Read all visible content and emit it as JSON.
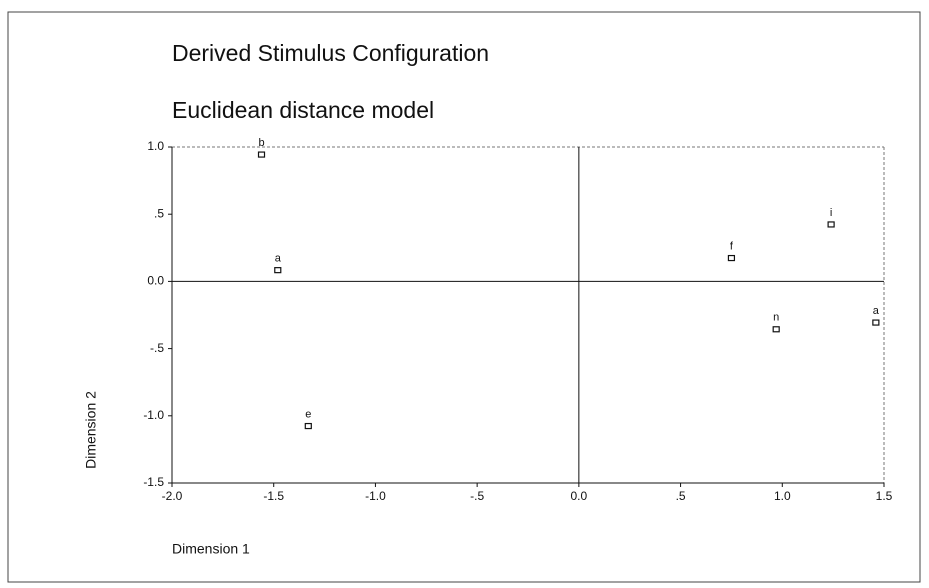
{
  "chart_data": {
    "type": "scatter",
    "title": "Derived Stimulus Configuration",
    "subtitle": "Euclidean distance model",
    "xlabel": "Dimension 1",
    "ylabel": "Dimension 2",
    "point_labels": [
      "b",
      "a",
      "e",
      "f",
      "i",
      "n",
      "a"
    ],
    "x": [
      -1.56,
      -1.48,
      -1.33,
      0.75,
      1.24,
      0.97,
      1.46
    ],
    "values": [
      0.94,
      0.08,
      -1.08,
      0.17,
      0.42,
      -0.36,
      -0.31
    ],
    "xlim": [
      -2.0,
      1.5
    ],
    "ylim": [
      -1.5,
      1.0
    ],
    "xticks": [
      {
        "value": -2.0,
        "label": "-2.0"
      },
      {
        "value": -1.5,
        "label": "-1.5"
      },
      {
        "value": -1.0,
        "label": "-1.0"
      },
      {
        "value": -0.5,
        "label": "-.5"
      },
      {
        "value": 0,
        "label": "0.0"
      },
      {
        "value": 0.5,
        "label": ".5"
      },
      {
        "value": 1.0,
        "label": "1.0"
      },
      {
        "value": 1.5,
        "label": "1.5"
      }
    ],
    "yticks": [
      {
        "value": 1.0,
        "label": "1.0"
      },
      {
        "value": 0.5,
        "label": ".5"
      },
      {
        "value": 0,
        "label": "0.0"
      },
      {
        "value": -0.5,
        "label": "-.5"
      },
      {
        "value": -1.0,
        "label": "-1.0"
      },
      {
        "value": -1.5,
        "label": "-1.5"
      }
    ],
    "color": "#111111"
  }
}
